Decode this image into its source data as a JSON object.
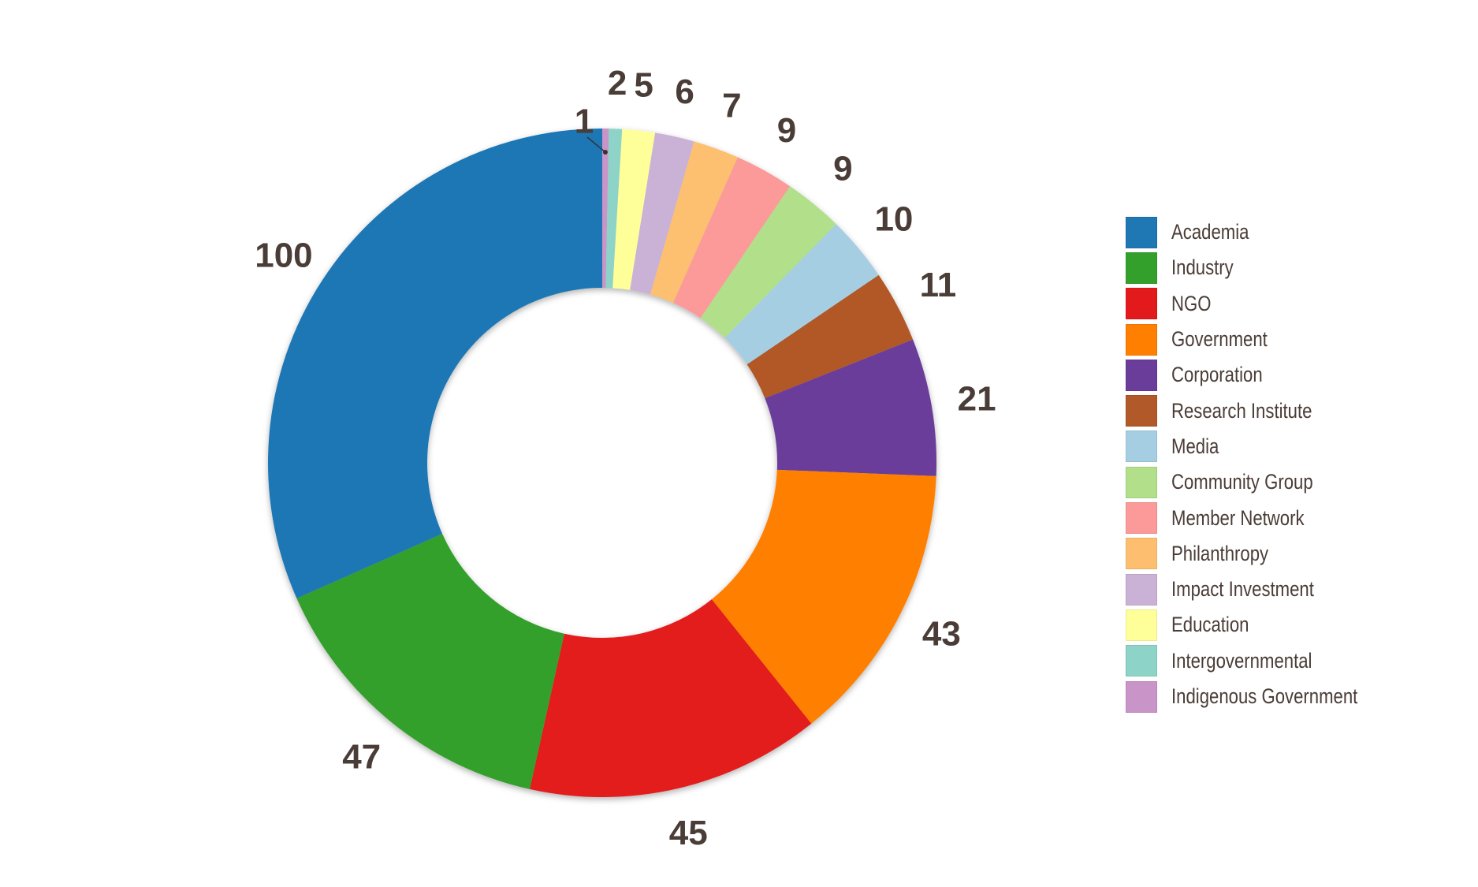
{
  "chart_data": {
    "type": "pie",
    "donut": true,
    "title": "",
    "categories": [
      "Academia",
      "Industry",
      "NGO",
      "Government",
      "Corporation",
      "Research Institute",
      "Media",
      "Community Group",
      "Member Network",
      "Philanthropy",
      "Impact Investment",
      "Education",
      "Intergovernmental",
      "Indigenous Government"
    ],
    "values": [
      100,
      47,
      45,
      43,
      21,
      11,
      10,
      9,
      9,
      7,
      6,
      5,
      2,
      1
    ],
    "colors": [
      "#1f77b4",
      "#33a02c",
      "#e31a1c",
      "#ff7f00",
      "#6a3d9a",
      "#b15928",
      "#a6cee3",
      "#b2df8a",
      "#fb9a99",
      "#fdbf6f",
      "#cab2d6",
      "#ffff99",
      "#8dd3c7",
      "#c994c7"
    ],
    "legend_position": "right",
    "label_color": "#4a3c36"
  }
}
